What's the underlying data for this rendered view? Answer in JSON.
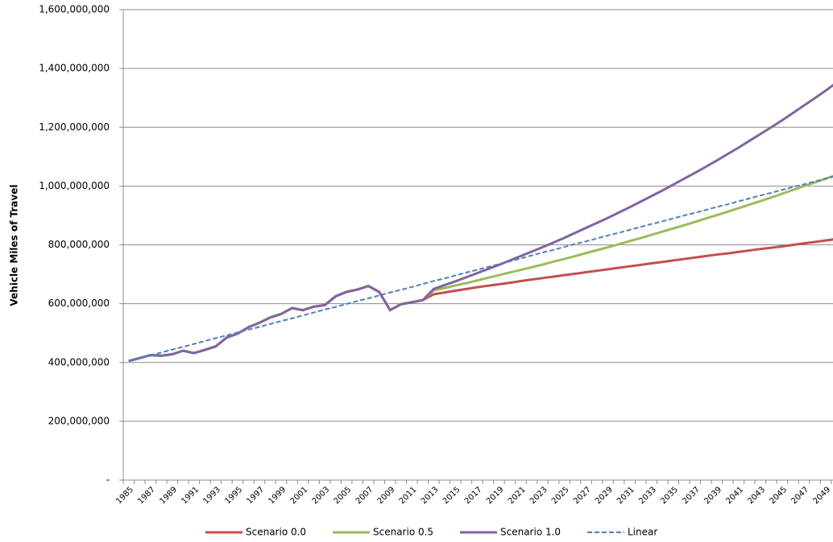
{
  "chart_data": {
    "type": "line",
    "y_label": "Vehicle Miles of Travel",
    "categories": [
      "1985",
      null,
      "1987",
      null,
      "1989",
      null,
      "1991",
      null,
      "1993",
      null,
      "1995",
      null,
      "1997",
      null,
      "1999",
      null,
      "2001",
      null,
      "2003",
      null,
      "2005",
      null,
      "2007",
      null,
      "2009",
      null,
      "2011",
      null,
      "2013",
      null,
      "2015",
      null,
      "2017",
      null,
      "2019",
      null,
      "2021",
      null,
      "2023",
      null,
      "2025",
      null,
      "2027",
      null,
      "2029",
      null,
      "2031",
      null,
      "2033",
      null,
      "2035",
      null,
      "2037",
      null,
      "2039",
      null,
      "2041",
      null,
      "2043",
      null,
      "2045",
      null,
      "2047",
      null,
      "2049",
      null
    ],
    "series": [
      {
        "name": "Scenario 0.0",
        "color": "#c0504d",
        "dash": false,
        "values": [
          405000000,
          415000000,
          425000000,
          423000000,
          428000000,
          440000000,
          432000000,
          443000000,
          455000000,
          485000000,
          498000000,
          520000000,
          535000000,
          553000000,
          565000000,
          585000000,
          578000000,
          590000000,
          595000000,
          625000000,
          640000000,
          648000000,
          660000000,
          640000000,
          578000000,
          598000000,
          605000000,
          612000000,
          632000000,
          638000000,
          644000000,
          650000000,
          656000000,
          661000000,
          666000000,
          671000000,
          677000000,
          682000000,
          687000000,
          692000000,
          697000000,
          702000000,
          707000000,
          712000000,
          717000000,
          722000000,
          727000000,
          732000000,
          737000000,
          742000000,
          747000000,
          752000000,
          757000000,
          762000000,
          767000000,
          771000000,
          776000000,
          781000000,
          786000000,
          790000000,
          795000000,
          800000000,
          805000000,
          810000000,
          815000000,
          820000000
        ]
      },
      {
        "name": "Scenario 0.5",
        "color": "#9bbb59",
        "dash": false,
        "values": [
          405000000,
          415000000,
          425000000,
          423000000,
          428000000,
          440000000,
          432000000,
          443000000,
          455000000,
          485000000,
          498000000,
          520000000,
          535000000,
          553000000,
          565000000,
          585000000,
          578000000,
          590000000,
          595000000,
          625000000,
          640000000,
          648000000,
          660000000,
          640000000,
          578000000,
          598000000,
          605000000,
          612000000,
          645000000,
          653000000,
          662000000,
          670000000,
          679000000,
          688000000,
          697000000,
          706000000,
          715000000,
          724000000,
          733000000,
          743000000,
          752000000,
          762000000,
          772000000,
          782000000,
          792000000,
          802000000,
          813000000,
          823000000,
          834000000,
          845000000,
          856000000,
          867000000,
          878000000,
          890000000,
          901000000,
          913000000,
          925000000,
          937000000,
          949000000,
          961000000,
          974000000,
          987000000,
          1000000000,
          1012000000,
          1025000000,
          1038000000
        ]
      },
      {
        "name": "Scenario 1.0",
        "color": "#8064a2",
        "dash": false,
        "values": [
          405000000,
          415000000,
          425000000,
          423000000,
          428000000,
          440000000,
          432000000,
          443000000,
          455000000,
          485000000,
          498000000,
          520000000,
          535000000,
          553000000,
          565000000,
          585000000,
          578000000,
          590000000,
          595000000,
          625000000,
          640000000,
          648000000,
          660000000,
          640000000,
          578000000,
          598000000,
          605000000,
          612000000,
          650000000,
          663000000,
          676000000,
          690000000,
          704000000,
          718000000,
          732000000,
          747000000,
          762000000,
          777000000,
          792000000,
          808000000,
          824000000,
          841000000,
          858000000,
          875000000,
          892000000,
          910000000,
          928000000,
          947000000,
          966000000,
          985000000,
          1005000000,
          1025000000,
          1045000000,
          1066000000,
          1087000000,
          1109000000,
          1131000000,
          1154000000,
          1177000000,
          1200000000,
          1224000000,
          1249000000,
          1274000000,
          1299000000,
          1325000000,
          1352000000
        ]
      },
      {
        "name": "Linear",
        "color": "#4f81bd",
        "dash": true,
        "values": [
          405000000,
          415000000,
          424000000,
          434000000,
          444000000,
          453000000,
          463000000,
          473000000,
          483000000,
          492000000,
          502000000,
          512000000,
          521000000,
          531000000,
          541000000,
          550000000,
          560000000,
          570000000,
          580000000,
          589000000,
          599000000,
          609000000,
          618000000,
          628000000,
          638000000,
          647000000,
          657000000,
          667000000,
          677000000,
          686000000,
          696000000,
          706000000,
          715000000,
          725000000,
          735000000,
          744000000,
          754000000,
          764000000,
          774000000,
          783000000,
          793000000,
          803000000,
          812000000,
          822000000,
          832000000,
          841000000,
          851000000,
          861000000,
          871000000,
          880000000,
          890000000,
          900000000,
          909000000,
          919000000,
          929000000,
          938000000,
          948000000,
          958000000,
          968000000,
          977000000,
          987000000,
          997000000,
          1006000000,
          1016000000,
          1026000000,
          1035000000
        ]
      }
    ],
    "ylim": [
      0,
      1600000000
    ],
    "yticks": [
      {
        "value": 0,
        "label": "-"
      },
      {
        "value": 200000000,
        "label": "200,000,000"
      },
      {
        "value": 400000000,
        "label": "400,000,000"
      },
      {
        "value": 600000000,
        "label": "600,000,000"
      },
      {
        "value": 800000000,
        "label": "800,000,000"
      },
      {
        "value": 1000000000,
        "label": "1,000,000,000"
      },
      {
        "value": 1200000000,
        "label": "1,200,000,000"
      },
      {
        "value": 1400000000,
        "label": "1,400,000,000"
      },
      {
        "value": 1600000000,
        "label": "1,600,000,000"
      }
    ],
    "grid": true,
    "legend": "bottom"
  }
}
